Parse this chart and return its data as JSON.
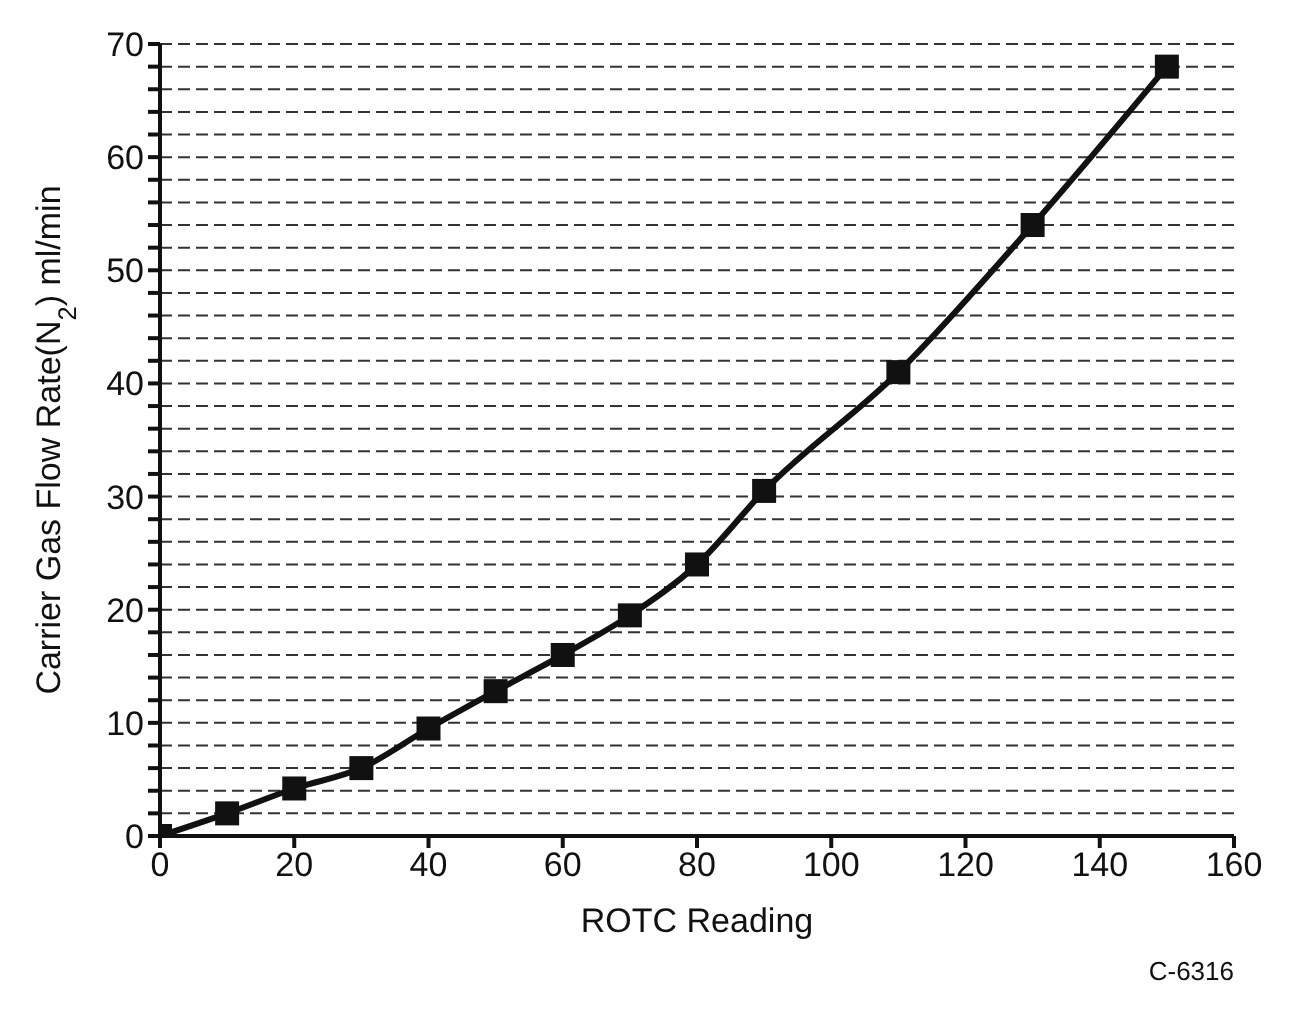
{
  "chart_data": {
    "type": "line",
    "xlabel": "ROTC Reading",
    "ylabel": "Carrier Gas Flow Rate(N$_{2}$) ml/min",
    "annotations": [
      "C-6316"
    ],
    "x": [
      0,
      10,
      20,
      30,
      40,
      50,
      60,
      70,
      80,
      90,
      110,
      130,
      150
    ],
    "series": [
      {
        "color": "#111111",
        "values": [
          0,
          2,
          4.2,
          6,
          9.5,
          12.8,
          16,
          19.5,
          24,
          30.5,
          41,
          54,
          68
        ]
      }
    ],
    "xlim": [
      0,
      160
    ],
    "xticks": [
      0,
      20,
      40,
      60,
      80,
      100,
      120,
      140,
      160
    ],
    "ylim": [
      0,
      70
    ],
    "yticks": [
      0,
      {
        "value": 2,
        "label": null
      },
      {
        "value": 4,
        "label": null
      },
      {
        "value": 6,
        "label": null
      },
      {
        "value": 8,
        "label": null
      },
      10,
      {
        "value": 12,
        "label": null
      },
      {
        "value": 14,
        "label": null
      },
      {
        "value": 16,
        "label": null
      },
      {
        "value": 18,
        "label": null
      },
      20,
      {
        "value": 22,
        "label": null
      },
      {
        "value": 24,
        "label": null
      },
      {
        "value": 26,
        "label": null
      },
      {
        "value": 28,
        "label": null
      },
      30,
      {
        "value": 32,
        "label": null
      },
      {
        "value": 34,
        "label": null
      },
      {
        "value": 36,
        "label": null
      },
      {
        "value": 38,
        "label": null
      },
      40,
      {
        "value": 42,
        "label": null
      },
      {
        "value": 44,
        "label": null
      },
      {
        "value": 46,
        "label": null
      },
      {
        "value": 48,
        "label": null
      },
      50,
      {
        "value": 52,
        "label": null
      },
      {
        "value": 54,
        "label": null
      },
      {
        "value": 56,
        "label": null
      },
      {
        "value": 58,
        "label": null
      },
      60,
      {
        "value": 62,
        "label": null
      },
      {
        "value": 64,
        "label": null
      },
      {
        "value": 66,
        "label": null
      },
      {
        "value": 68,
        "label": null
      },
      70
    ],
    "grid": "y",
    "marker": "square",
    "line_style": "solid"
  }
}
